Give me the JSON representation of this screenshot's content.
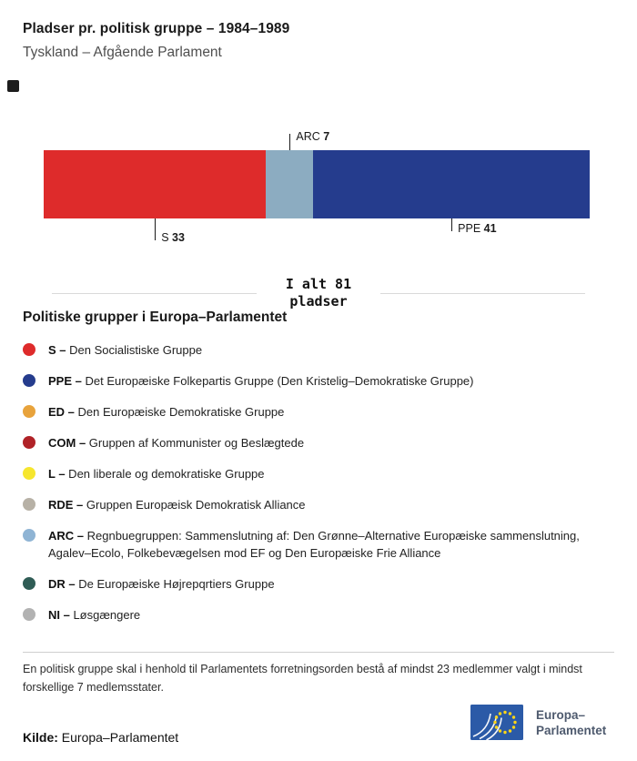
{
  "header": {
    "title": "Pladser pr. politisk gruppe – 1984–1989",
    "subtitle": "Tyskland – Afgående Parlament"
  },
  "chart_data": {
    "type": "bar",
    "variant": "horizontal-stacked",
    "title": "Pladser pr. politisk gruppe – 1984–1989",
    "subtitle": "Tyskland – Afgående Parlament",
    "total": 81,
    "total_label": [
      "I alt 81",
      "pladser"
    ],
    "categories": [
      "S",
      "ARC",
      "PPE"
    ],
    "values": [
      33,
      7,
      41
    ],
    "segments": [
      {
        "abbr": "S",
        "value": 33,
        "color": "#de2b2b",
        "label_side": "below",
        "tick": 24
      },
      {
        "abbr": "ARC",
        "value": 7,
        "color": "#8cacc1",
        "label_side": "above",
        "tick": 18
      },
      {
        "abbr": "PPE",
        "value": 41,
        "color": "#253c8d",
        "label_side": "below",
        "tick": 14
      }
    ]
  },
  "legend": {
    "title": "Politiske grupper i Europa–Parlamentet",
    "items": [
      {
        "abbr": "S –",
        "text": "Den Socialistiske Gruppe",
        "color": "#de2b2b"
      },
      {
        "abbr": "PPE –",
        "text": "Det Europæiske Folkepartis Gruppe (Den Kristelig–Demokratiske Gruppe)",
        "color": "#253c8d"
      },
      {
        "abbr": "ED –",
        "text": "Den Europæiske Demokratiske Gruppe",
        "color": "#e8a33c"
      },
      {
        "abbr": "COM –",
        "text": "Gruppen af Kommunister og Beslægtede",
        "color": "#b02227"
      },
      {
        "abbr": "L –",
        "text": "Den liberale og demokratiske Gruppe",
        "color": "#f6e62e"
      },
      {
        "abbr": "RDE –",
        "text": "Gruppen Europæisk Demokratisk Alliance",
        "color": "#b7b1a6"
      },
      {
        "abbr": "ARC –",
        "text": "Regnbuegruppen: Sammenslutning af: Den Grønne–Alternative Europæiske sammenslutning, Agalev–Ecolo, Folkebevægelsen mod EF og Den Europæiske Frie Alliance",
        "color": "#8fb4d4"
      },
      {
        "abbr": "DR –",
        "text": "De Europæiske Højrepqrtiers Gruppe",
        "color": "#2f5c55"
      },
      {
        "abbr": "NI –",
        "text": "Løsgængere",
        "color": "#b2b2b2"
      }
    ]
  },
  "footer": {
    "note": "En politisk gruppe skal i henhold til Parlamentets forretningsorden bestå af mindst 23 medlemmer valgt i mindst forskellige 7 medlemsstater.",
    "source_label": "Kilde:",
    "source_value": "Europa–Parlamentet",
    "logo_line1": "Europa–",
    "logo_line2": "Parlamentet"
  },
  "colors": {
    "eu_blue": "#2b5aa7",
    "star_yellow": "#ffd617"
  }
}
